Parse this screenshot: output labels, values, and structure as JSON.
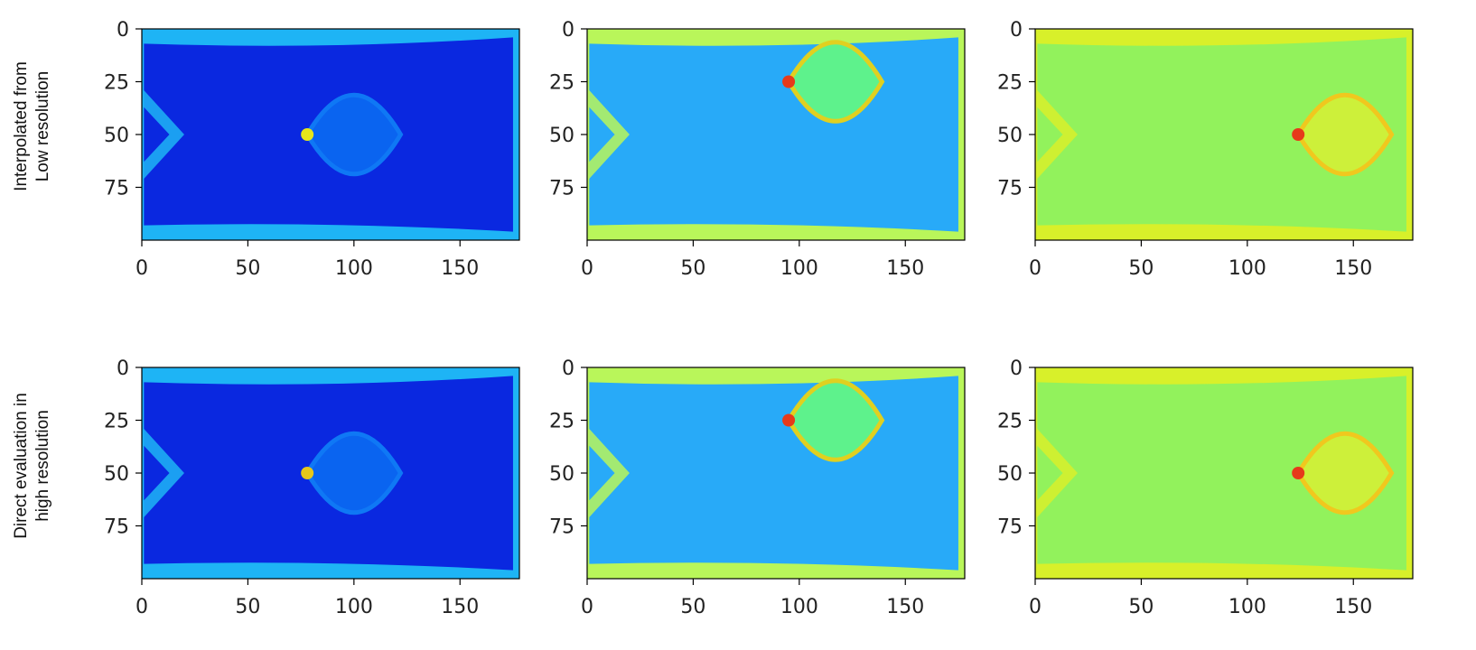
{
  "figure": {
    "row_labels": [
      [
        "Interpolated from",
        "Low resolution"
      ],
      [
        "Direct evaluation in",
        "high resolution"
      ]
    ]
  },
  "chart_data": [
    {
      "type": "heatmap",
      "colormap": "jet",
      "xlim": [
        0,
        178
      ],
      "ylim": [
        100,
        0
      ],
      "xticks": [
        0,
        50,
        100,
        150
      ],
      "yticks": [
        0,
        25,
        50,
        75
      ],
      "dominant_color": "#0a28e0",
      "edge_color": "#1eb4f5",
      "wing_color": "#0f78f5",
      "core_color": "#0a64f0",
      "hotspot": {
        "x": 78,
        "y": 50,
        "color": "#e6e61a"
      }
    },
    {
      "type": "heatmap",
      "colormap": "jet",
      "xlim": [
        0,
        178
      ],
      "ylim": [
        100,
        0
      ],
      "xticks": [
        0,
        50,
        100,
        150
      ],
      "yticks": [
        0,
        25,
        50,
        75
      ],
      "dominant_color": "#28aaf8",
      "edge_color": "#b9f65a",
      "wing_color": "#e0d020",
      "core_color": "#5ef28c",
      "hotspot": {
        "x": 95,
        "y": 25,
        "color": "#e63a1a"
      }
    },
    {
      "type": "heatmap",
      "colormap": "jet",
      "xlim": [
        0,
        178
      ],
      "ylim": [
        100,
        0
      ],
      "xticks": [
        0,
        50,
        100,
        150
      ],
      "yticks": [
        0,
        25,
        50,
        75
      ],
      "dominant_color": "#92f25c",
      "edge_color": "#d8f02a",
      "wing_color": "#f0c81e",
      "core_color": "#cdf03a",
      "hotspot": {
        "x": 124,
        "y": 50,
        "color": "#e63a1a"
      }
    },
    {
      "type": "heatmap",
      "colormap": "jet",
      "xlim": [
        0,
        178
      ],
      "ylim": [
        100,
        0
      ],
      "xticks": [
        0,
        50,
        100,
        150
      ],
      "yticks": [
        0,
        25,
        50,
        75
      ],
      "dominant_color": "#0a28e0",
      "edge_color": "#1eb4f5",
      "wing_color": "#0f78f5",
      "core_color": "#0a64f0",
      "hotspot": {
        "x": 78,
        "y": 50,
        "color": "#e6c81a"
      }
    },
    {
      "type": "heatmap",
      "colormap": "jet",
      "xlim": [
        0,
        178
      ],
      "ylim": [
        100,
        0
      ],
      "xticks": [
        0,
        50,
        100,
        150
      ],
      "yticks": [
        0,
        25,
        50,
        75
      ],
      "dominant_color": "#28aaf8",
      "edge_color": "#b9f65a",
      "wing_color": "#e0d020",
      "core_color": "#5ef28c",
      "hotspot": {
        "x": 95,
        "y": 25,
        "color": "#e63a1a"
      }
    },
    {
      "type": "heatmap",
      "colormap": "jet",
      "xlim": [
        0,
        178
      ],
      "ylim": [
        100,
        0
      ],
      "xticks": [
        0,
        50,
        100,
        150
      ],
      "yticks": [
        0,
        25,
        50,
        75
      ],
      "dominant_color": "#92f25c",
      "edge_color": "#d8f02a",
      "wing_color": "#f0c81e",
      "core_color": "#cdf03a",
      "hotspot": {
        "x": 124,
        "y": 50,
        "color": "#e63a1a"
      }
    }
  ]
}
